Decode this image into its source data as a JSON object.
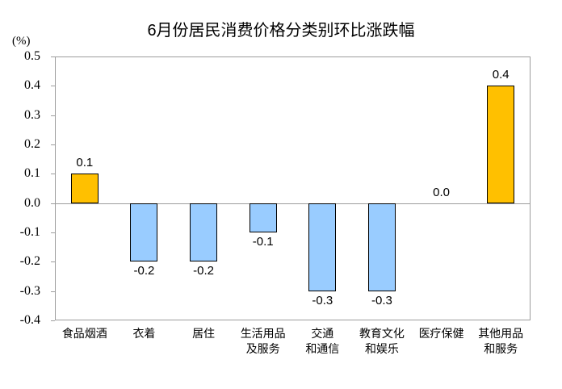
{
  "chart": {
    "title": "6月份居民消费价格分类别环比涨跌幅",
    "unit_label": "(%)"
  },
  "chart_data": {
    "type": "bar",
    "title": "6月份居民消费价格分类别环比涨跌幅",
    "ylabel": "(%)",
    "xlabel": "",
    "categories": [
      "食品烟酒",
      "衣着",
      "居住",
      "生活用品\n及服务",
      "交通\n和通信",
      "教育文化\n和娱乐",
      "医疗保健",
      "其他用品\n和服务"
    ],
    "values": [
      0.1,
      -0.2,
      -0.2,
      -0.1,
      -0.3,
      -0.3,
      0.0,
      0.4
    ],
    "data_labels": [
      "0.1",
      "-0.2",
      "-0.2",
      "-0.1",
      "-0.3",
      "-0.3",
      "0.0",
      "0.4"
    ],
    "bar_colors": [
      "#FFC000",
      "#99CCFF",
      "#99CCFF",
      "#99CCFF",
      "#99CCFF",
      "#99CCFF",
      "#99CCFF",
      "#FFC000"
    ],
    "positive_color": "#FFC000",
    "negative_color": "#99CCFF",
    "bar_border_color": "#000000",
    "axis_color": "#9D9D9D",
    "text_color": "#000000",
    "background_color": "#FFFFFF",
    "ylim": [
      -0.4,
      0.5
    ],
    "ytick_step": 0.1,
    "yticks": [
      "0.5",
      "0.4",
      "0.3",
      "0.2",
      "0.1",
      "0.0",
      "-0.1",
      "-0.2",
      "-0.3",
      "-0.4"
    ],
    "grid": false,
    "legend": false
  }
}
